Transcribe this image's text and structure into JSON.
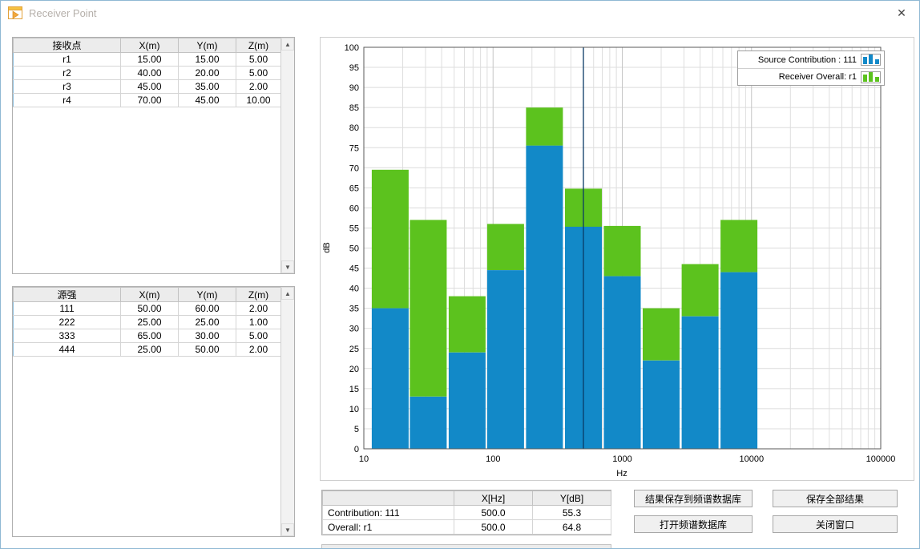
{
  "window": {
    "title": "Receiver Point",
    "close_label": "✕"
  },
  "receiver_table": {
    "headers": [
      "接收点",
      "X(m)",
      "Y(m)",
      "Z(m)"
    ],
    "rows": [
      [
        "r1",
        "15.00",
        "15.00",
        "5.00"
      ],
      [
        "r2",
        "40.00",
        "20.00",
        "5.00"
      ],
      [
        "r3",
        "45.00",
        "35.00",
        "2.00"
      ],
      [
        "r4",
        "70.00",
        "45.00",
        "10.00"
      ]
    ]
  },
  "source_table": {
    "headers": [
      "源强",
      "X(m)",
      "Y(m)",
      "Z(m)"
    ],
    "rows": [
      [
        "111",
        "50.00",
        "60.00",
        "2.00"
      ],
      [
        "222",
        "25.00",
        "25.00",
        "1.00"
      ],
      [
        "333",
        "65.00",
        "30.00",
        "5.00"
      ],
      [
        "444",
        "25.00",
        "50.00",
        "2.00"
      ]
    ]
  },
  "chart_data": {
    "type": "bar",
    "stacked": true,
    "xscale": "log",
    "x": [
      16,
      31.5,
      63,
      125,
      250,
      500,
      1000,
      2000,
      4000,
      8000
    ],
    "series": [
      {
        "name": "Source Contribution : 111",
        "color": "#1289c8",
        "values": [
          35,
          13,
          24,
          44.5,
          75.5,
          55.3,
          43,
          22,
          33,
          44
        ]
      },
      {
        "name": "Receiver Overall: r1",
        "color": "#5cc21e",
        "values": [
          69.5,
          57,
          38,
          56,
          85,
          64.8,
          55.5,
          35,
          46,
          57
        ]
      }
    ],
    "title": "",
    "ylabel": "dB",
    "xlabel": "Hz",
    "ylim": [
      0,
      100
    ],
    "ytick_step": 5,
    "xlim": [
      10,
      100000
    ],
    "xticks": [
      10,
      100,
      1000,
      10000,
      100000
    ],
    "cursor_x": 500,
    "cursor_color": "#0a3a66",
    "grid": true,
    "legend_position": "top-right"
  },
  "cursor_table": {
    "headers": [
      "",
      "X[Hz]",
      "Y[dB]"
    ],
    "rows": [
      [
        "Contribution: 111",
        "500.0",
        "55.3"
      ],
      [
        "Overall: r1",
        "500.0",
        "64.8"
      ]
    ]
  },
  "buttons": [
    {
      "label": "结果保存到频谱数据库"
    },
    {
      "label": "保存全部结果"
    },
    {
      "label": "打开频谱数据库"
    },
    {
      "label": "关闭窗口"
    }
  ]
}
